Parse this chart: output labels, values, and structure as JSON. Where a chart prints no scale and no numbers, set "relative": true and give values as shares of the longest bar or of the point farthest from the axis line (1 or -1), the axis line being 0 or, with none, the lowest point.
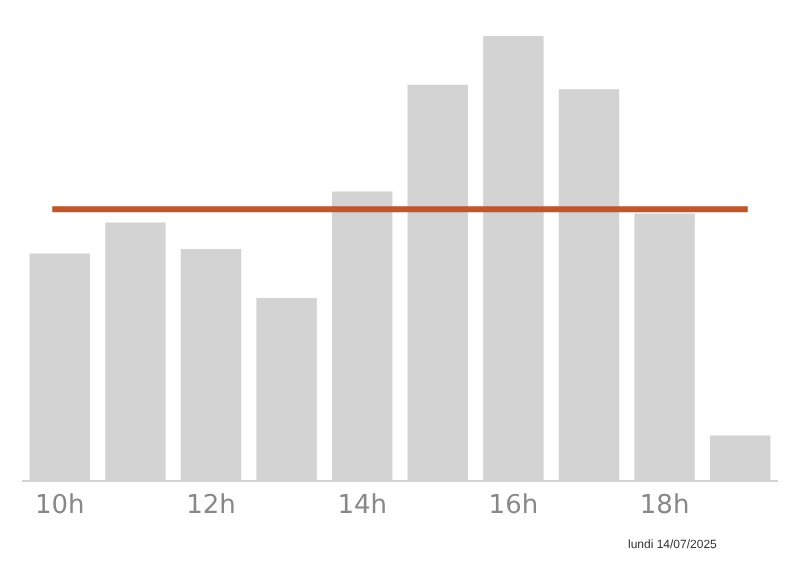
{
  "chart_data": {
    "type": "bar",
    "relative": true,
    "categories": [
      "10h",
      null,
      "12h",
      null,
      "14h",
      null,
      "16h",
      null,
      "18h",
      null
    ],
    "values": [
      0.51,
      0.58,
      0.52,
      0.41,
      0.65,
      0.89,
      1,
      0.88,
      0.6,
      0.1
    ],
    "color": "#d3d3d3",
    "ref_lines": [
      {
        "axis": "y",
        "value": 0.61,
        "color": "#c0562a"
      }
    ],
    "annotations": [
      "lundi 14/07/2025"
    ]
  }
}
